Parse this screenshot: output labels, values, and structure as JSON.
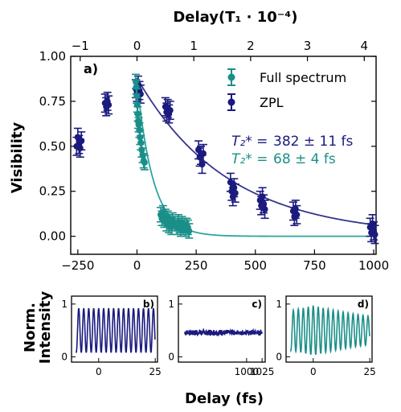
{
  "colors": {
    "zpl": "#1b1a7e",
    "full": "#1a8f88",
    "full_fit": "#2aa69e",
    "zpl_fit": "#35358f"
  },
  "chart_data": [
    {
      "type": "scatter",
      "panel_label": "a)",
      "xlabel": "",
      "ylabel": "Visibility",
      "xlim": [
        -280,
        1010
      ],
      "ylim": [
        -0.1,
        1.0
      ],
      "xticks": [
        -250,
        0,
        250,
        500,
        750,
        1000
      ],
      "yticks": [
        0.0,
        0.25,
        0.5,
        0.75,
        1.0
      ],
      "ytick_labels": [
        "0.00",
        "0.25",
        "0.50",
        "0.75",
        "1.00"
      ],
      "top_axis": {
        "label_prefix": "Delay ",
        "label_math": "(T₁ · 10⁻⁴)",
        "ticks": [
          -1,
          0,
          1,
          2,
          3,
          4
        ],
        "tick_positions_data": [
          -240,
          0,
          240,
          480,
          720,
          960
        ]
      },
      "legend": [
        "Full spectrum",
        "ZPL"
      ],
      "legend_position": "top-right",
      "annotations": [
        {
          "series": "ZPL",
          "math": "T₂* =",
          "text": "382 ± 11 fs"
        },
        {
          "series": "Full spectrum",
          "math": "T₂* =",
          "text": "68 ± 4 fs"
        }
      ],
      "series": [
        {
          "name": "ZPL",
          "x": [
            -250,
            -245,
            -240,
            -235,
            -255,
            -130,
            -125,
            -120,
            -135,
            -5,
            0,
            5,
            10,
            15,
            120,
            125,
            130,
            135,
            140,
            260,
            265,
            270,
            275,
            280,
            395,
            400,
            405,
            410,
            415,
            520,
            525,
            530,
            535,
            540,
            660,
            665,
            670,
            675,
            985,
            990,
            995,
            1000,
            1005
          ],
          "y": [
            0.55,
            0.51,
            0.49,
            0.53,
            0.5,
            0.72,
            0.75,
            0.73,
            0.74,
            0.82,
            0.8,
            0.84,
            0.81,
            0.79,
            0.72,
            0.69,
            0.71,
            0.68,
            0.7,
            0.48,
            0.44,
            0.45,
            0.4,
            0.46,
            0.3,
            0.25,
            0.22,
            0.27,
            0.24,
            0.2,
            0.17,
            0.22,
            0.18,
            0.15,
            0.14,
            0.11,
            0.15,
            0.12,
            0.05,
            0.02,
            0.07,
            0.03,
            0.01
          ],
          "yerr": 0.05
        },
        {
          "name": "Full spectrum",
          "x": [
            -5,
            -3,
            -1,
            1,
            3,
            5,
            7,
            10,
            13,
            16,
            20,
            24,
            28,
            32,
            100,
            105,
            110,
            115,
            120,
            125,
            130,
            135,
            140,
            145,
            150,
            160,
            170,
            175,
            180,
            185,
            190,
            195,
            200,
            205,
            210,
            215,
            220
          ],
          "y": [
            0.86,
            0.83,
            0.78,
            0.73,
            0.68,
            0.64,
            0.62,
            0.59,
            0.55,
            0.52,
            0.48,
            0.45,
            0.42,
            0.41,
            0.12,
            0.1,
            0.13,
            0.09,
            0.11,
            0.07,
            0.1,
            0.06,
            0.08,
            0.05,
            0.09,
            0.07,
            0.05,
            0.08,
            0.06,
            0.04,
            0.07,
            0.05,
            0.06,
            0.04,
            0.06,
            0.05,
            0.03
          ],
          "yerr": 0.04
        },
        {
          "name": "ZPL fit",
          "type": "line",
          "model": "0.88*exp(-x/382)",
          "x_range": [
            0,
            1000
          ]
        },
        {
          "name": "Full spectrum fit",
          "type": "line",
          "model": "0.86*exp(-x/68)",
          "x_range": [
            0,
            1000
          ]
        }
      ]
    },
    {
      "type": "line",
      "panel_label": "b)",
      "ylabel": "Norm.\nIntensity",
      "xlim": [
        -12,
        26
      ],
      "ylim": [
        -0.1,
        1.15
      ],
      "xticks": [
        0,
        25
      ],
      "yticks": [
        0,
        1
      ],
      "series": [
        {
          "name": "ZPL",
          "amplitude": 0.42,
          "offset": 0.5,
          "period_fs": 2.2,
          "decay": 0,
          "x_range": [
            -10,
            25
          ]
        }
      ]
    },
    {
      "type": "line",
      "panel_label": "c)",
      "xlim": [
        890,
        1030
      ],
      "ylim": [
        -0.1,
        1.15
      ],
      "xticks": [
        1000,
        1025
      ],
      "yticks": [
        0,
        1
      ],
      "series": [
        {
          "name": "ZPL",
          "amplitude": 0.04,
          "offset": 0.46,
          "noise": true,
          "x_range": [
            900,
            1025
          ]
        }
      ]
    },
    {
      "type": "line",
      "panel_label": "d)",
      "xlim": [
        -12,
        26
      ],
      "ylim": [
        -0.1,
        1.15
      ],
      "xticks": [
        0,
        25
      ],
      "yticks": [
        0,
        1
      ],
      "series": [
        {
          "name": "Full spectrum",
          "amplitude": 0.47,
          "offset": 0.5,
          "period_fs": 2.2,
          "decay_fs": 45,
          "x_range": [
            -10,
            25
          ]
        }
      ]
    }
  ],
  "bottom_xlabel": "Delay (fs)"
}
